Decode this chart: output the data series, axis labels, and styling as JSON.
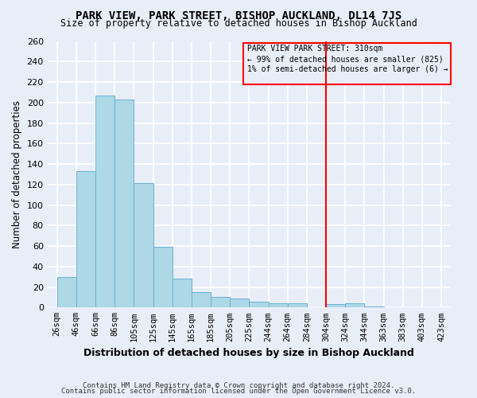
{
  "title": "PARK VIEW, PARK STREET, BISHOP AUCKLAND, DL14 7JS",
  "subtitle": "Size of property relative to detached houses in Bishop Auckland",
  "xlabel": "Distribution of detached houses by size in Bishop Auckland",
  "ylabel": "Number of detached properties",
  "footer_lines": [
    "Contains HM Land Registry data © Crown copyright and database right 2024.",
    "Contains public sector information licensed under the Open Government Licence v3.0."
  ],
  "bin_labels": [
    "26sqm",
    "46sqm",
    "66sqm",
    "86sqm",
    "105sqm",
    "125sqm",
    "145sqm",
    "165sqm",
    "185sqm",
    "205sqm",
    "225sqm",
    "244sqm",
    "264sqm",
    "284sqm",
    "304sqm",
    "324sqm",
    "344sqm",
    "363sqm",
    "383sqm",
    "403sqm",
    "423sqm"
  ],
  "bar_values": [
    30,
    133,
    207,
    203,
    121,
    59,
    28,
    15,
    10,
    9,
    6,
    4,
    4,
    0,
    3,
    4,
    1,
    0,
    0,
    0
  ],
  "bar_color": "#add8e6",
  "bar_edge_color": "#6ab0d4",
  "vline_x_label": "304sqm",
  "vline_label": "PARK VIEW PARK STREET: 310sqm",
  "vline_note1": "← 99% of detached houses are smaller (825)",
  "vline_note2": "1% of semi-detached houses are larger (6) →",
  "vline_color": "red",
  "box_color": "red",
  "ylim": [
    0,
    260
  ],
  "yticks": [
    0,
    20,
    40,
    60,
    80,
    100,
    120,
    140,
    160,
    180,
    200,
    220,
    240,
    260
  ],
  "background_color": "#e8eef8",
  "grid_color": "#ffffff"
}
